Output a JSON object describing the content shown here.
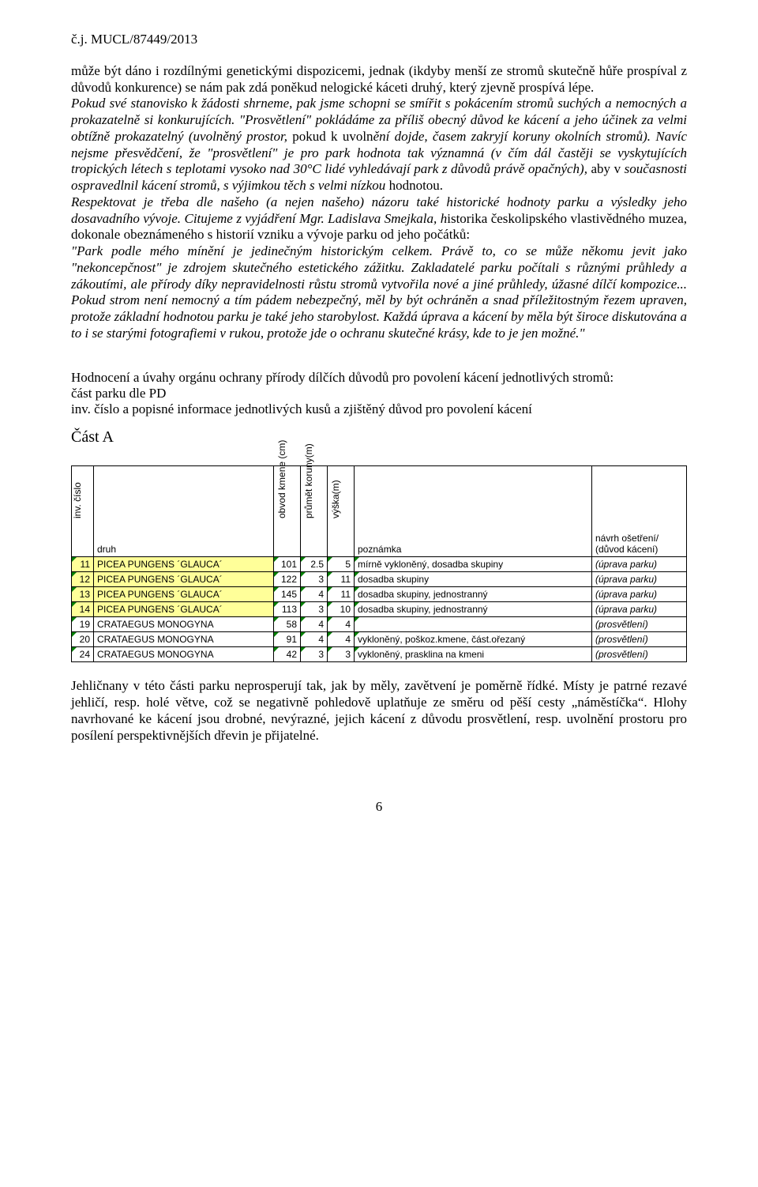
{
  "doc_ref": "č.j. MUCL/87449/2013",
  "para1_a": "může být dáno i rozdílnými genetickými dispozicemi, jednak (ikdyby menší ze stromů skutečně hůře prospíval z důvodů konkurence) se nám pak zdá poněkud nelogické káceti druhý, který zjevně prospívá lépe.",
  "para1_b": "Pokud své stanovisko k žádosti shrneme, pak jsme schopni se smířit s pokácením stromů suchých a nemocných a prokazatelně si konkurujících. \"Prosvětlení\" pokládáme za příliš obecný důvod ke kácení a jeho účinek za velmi obtížně prokazatelný (uvolněný prostor, ",
  "para1_c": "pokud k uvoln",
  "para1_d": "ění dojde, časem zakryjí koruny okolních stromů). Navíc nejsme přesvědčení, že \"prosvětlení\" je pro park hodnota tak významná (v čím dál častěji se vyskytujících tropických létech s teplotami vysoko nad 30°C lidé vyhledávají park z důvodů právě opačných), ",
  "para1_e": "aby v ",
  "para1_f": "současnosti ospravedlnil kácení stromů, s výjimkou těch s velmi nízkou ",
  "para1_g": "hodnotou.",
  "para2_a": "Respektovat je třeba dle našeho (a nejen našeho) názoru také historické hodnoty parku a výsledky jeho dosavadního vývoje. Citujeme z vyjádření Mgr. Ladislava Smejkala, h",
  "para2_b": "istorika českolipského vlastivědného muzea, dokonale obeznámeného s historií vzniku a vývoje parku od jeho počátků:",
  "para3_a": "\"Park podle mého mínění je jedinečným historickým celkem. Právě to, co se může někomu jevit jako \"nekoncepčnost\" je zdrojem skutečného estetického zážitku. Zakladatelé parku počítali s různými průhledy a zákoutími, ale přírody díky nepravidelnosti růstu stromů vytvořila nové a jiné průhledy, úžasné dílčí kompozice... Pokud strom není nemocný a tím pádem nebezpečný, měl by být ochráněn a snad příležitostným řezem upraven, protože základní hodnotou parku je také jeho starobylost. Každá úprava a kácení by měla být široce diskutována a to i se starými fotografiemi v rukou, protože jde o ochranu skutečné krásy, kde to je jen možné.\"",
  "section_intro_1": "Hodnocení a úvahy orgánu ochrany přírody dílčích důvodů pro povolení kácení jednotlivých stromů:",
  "section_intro_2": "část parku dle PD",
  "section_intro_3": "inv. číslo a popisné informace jednotlivých kusů a zjištěný důvod pro povolení kácení",
  "part_label": "Část A",
  "table": {
    "headers": {
      "inv": "inv. číslo",
      "druh": "druh",
      "obvod": "obvod kmene (cm)",
      "prumet": "průmět koruny(m)",
      "vyska": "výška(m)",
      "poznamka": "poznámka",
      "navrh": "návrh ošetření/ (důvod kácení)"
    },
    "rows": [
      {
        "inv": "11",
        "druh": "PICEA PUNGENS ´GLAUCA´",
        "obv": "101",
        "prum": "2.5",
        "vys": "5",
        "pozn": "mírně vykloněný, dosadba skupiny",
        "nav": "(úprava parku)",
        "hl": true
      },
      {
        "inv": "12",
        "druh": "PICEA PUNGENS ´GLAUCA´",
        "obv": "122",
        "prum": "3",
        "vys": "11",
        "pozn": "dosadba skupiny",
        "nav": "(úprava parku)",
        "hl": true
      },
      {
        "inv": "13",
        "druh": "PICEA PUNGENS ´GLAUCA´",
        "obv": "145",
        "prum": "4",
        "vys": "11",
        "pozn": "dosadba skupiny, jednostranný",
        "nav": "(úprava parku)",
        "hl": true
      },
      {
        "inv": "14",
        "druh": "PICEA PUNGENS ´GLAUCA´",
        "obv": "113",
        "prum": "3",
        "vys": "10",
        "pozn": "dosadba skupiny, jednostranný",
        "nav": "(úprava parku)",
        "hl": true
      },
      {
        "inv": "19",
        "druh": "CRATAEGUS MONOGYNA",
        "obv": "58",
        "prum": "4",
        "vys": "4",
        "pozn": "",
        "nav": "(prosvětlení)",
        "hl": false
      },
      {
        "inv": "20",
        "druh": "CRATAEGUS MONOGYNA",
        "obv": "91",
        "prum": "4",
        "vys": "4",
        "pozn": "vykloněný, poškoz.kmene, část.ořezaný",
        "nav": "(prosvětlení)",
        "hl": false
      },
      {
        "inv": "24",
        "druh": "CRATAEGUS MONOGYNA",
        "obv": "42",
        "prum": "3",
        "vys": "3",
        "pozn": "vykloněný, prasklina na kmeni",
        "nav": "(prosvětlení)",
        "hl": false
      }
    ]
  },
  "after": "Jehličnany v této části parku neprosperují tak, jak by měly, zavětvení je poměrně řídké. Místy je patrné rezavé jehličí, resp. holé větve, což se negativně pohledově uplatňuje ze směru od pěší cesty „náměstíčka“. Hlohy navrhované ke kácení jsou drobné, nevýrazné, jejich kácení z důvodu prosvětlení, resp. uvolnění prostoru pro posílení perspektivnějších dřevin je přijatelné.",
  "pagenum": "6"
}
